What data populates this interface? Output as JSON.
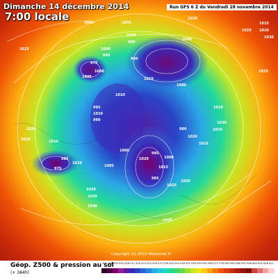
{
  "header": {
    "date": "Dimanche 14 décembre 2014",
    "time": "7:00 locale",
    "run": "Run GFS 6 Z du Vendredi 28 novembre 2014"
  },
  "copyright": "Copyright (c) 2010 Meteociel.fr",
  "footer": {
    "title": "Géop. Z500 & pression au sol",
    "subtitle": "(+ 384h)"
  },
  "legend": {
    "ticks": [
      "492",
      "496",
      "500",
      "504",
      "508",
      "512",
      "516",
      "520",
      "524",
      "528",
      "532",
      "536",
      "540",
      "544",
      "548",
      "552",
      "556",
      "560",
      "564",
      "568",
      "572",
      "576",
      "580",
      "584",
      "588",
      "592",
      "596",
      "600",
      "604",
      "608",
      "612"
    ],
    "colors": [
      "#2c0026",
      "#520046",
      "#7a006e",
      "#9a1a9a",
      "#5c1aa8",
      "#3a2ab8",
      "#2c44c8",
      "#2866d6",
      "#2a88e2",
      "#2aaae6",
      "#22c8e0",
      "#1ed8c0",
      "#22d89a",
      "#3ed870",
      "#66dc48",
      "#98e030",
      "#c6e624",
      "#ece41a",
      "#fcc80e",
      "#fca008",
      "#f87806",
      "#f05206",
      "#e03a08",
      "#c82a0a",
      "#b01c0c",
      "#961408",
      "#7c0e06",
      "#d04040",
      "#e07070",
      "#f0a0a0",
      "#ffd0d0"
    ]
  },
  "pressure_labels": [
    "1005",
    "1020",
    "1025",
    "1025",
    "1010",
    "1015",
    "1030",
    "1035",
    "1020",
    "1040",
    "1000",
    "995",
    "990",
    "990",
    "975",
    "1000",
    "1005",
    "1015",
    "1010",
    "1025",
    "1000",
    "995",
    "1010",
    "1015",
    "990",
    "980",
    "1030",
    "1020",
    "1010",
    "1010",
    "1000",
    "985",
    "975",
    "985",
    "1025",
    "1030",
    "1035",
    "1040",
    "1020",
    "1025",
    "1015",
    "1005",
    "1010",
    "1000",
    "1025",
    "995",
    "1020",
    "1030",
    "1015"
  ]
}
